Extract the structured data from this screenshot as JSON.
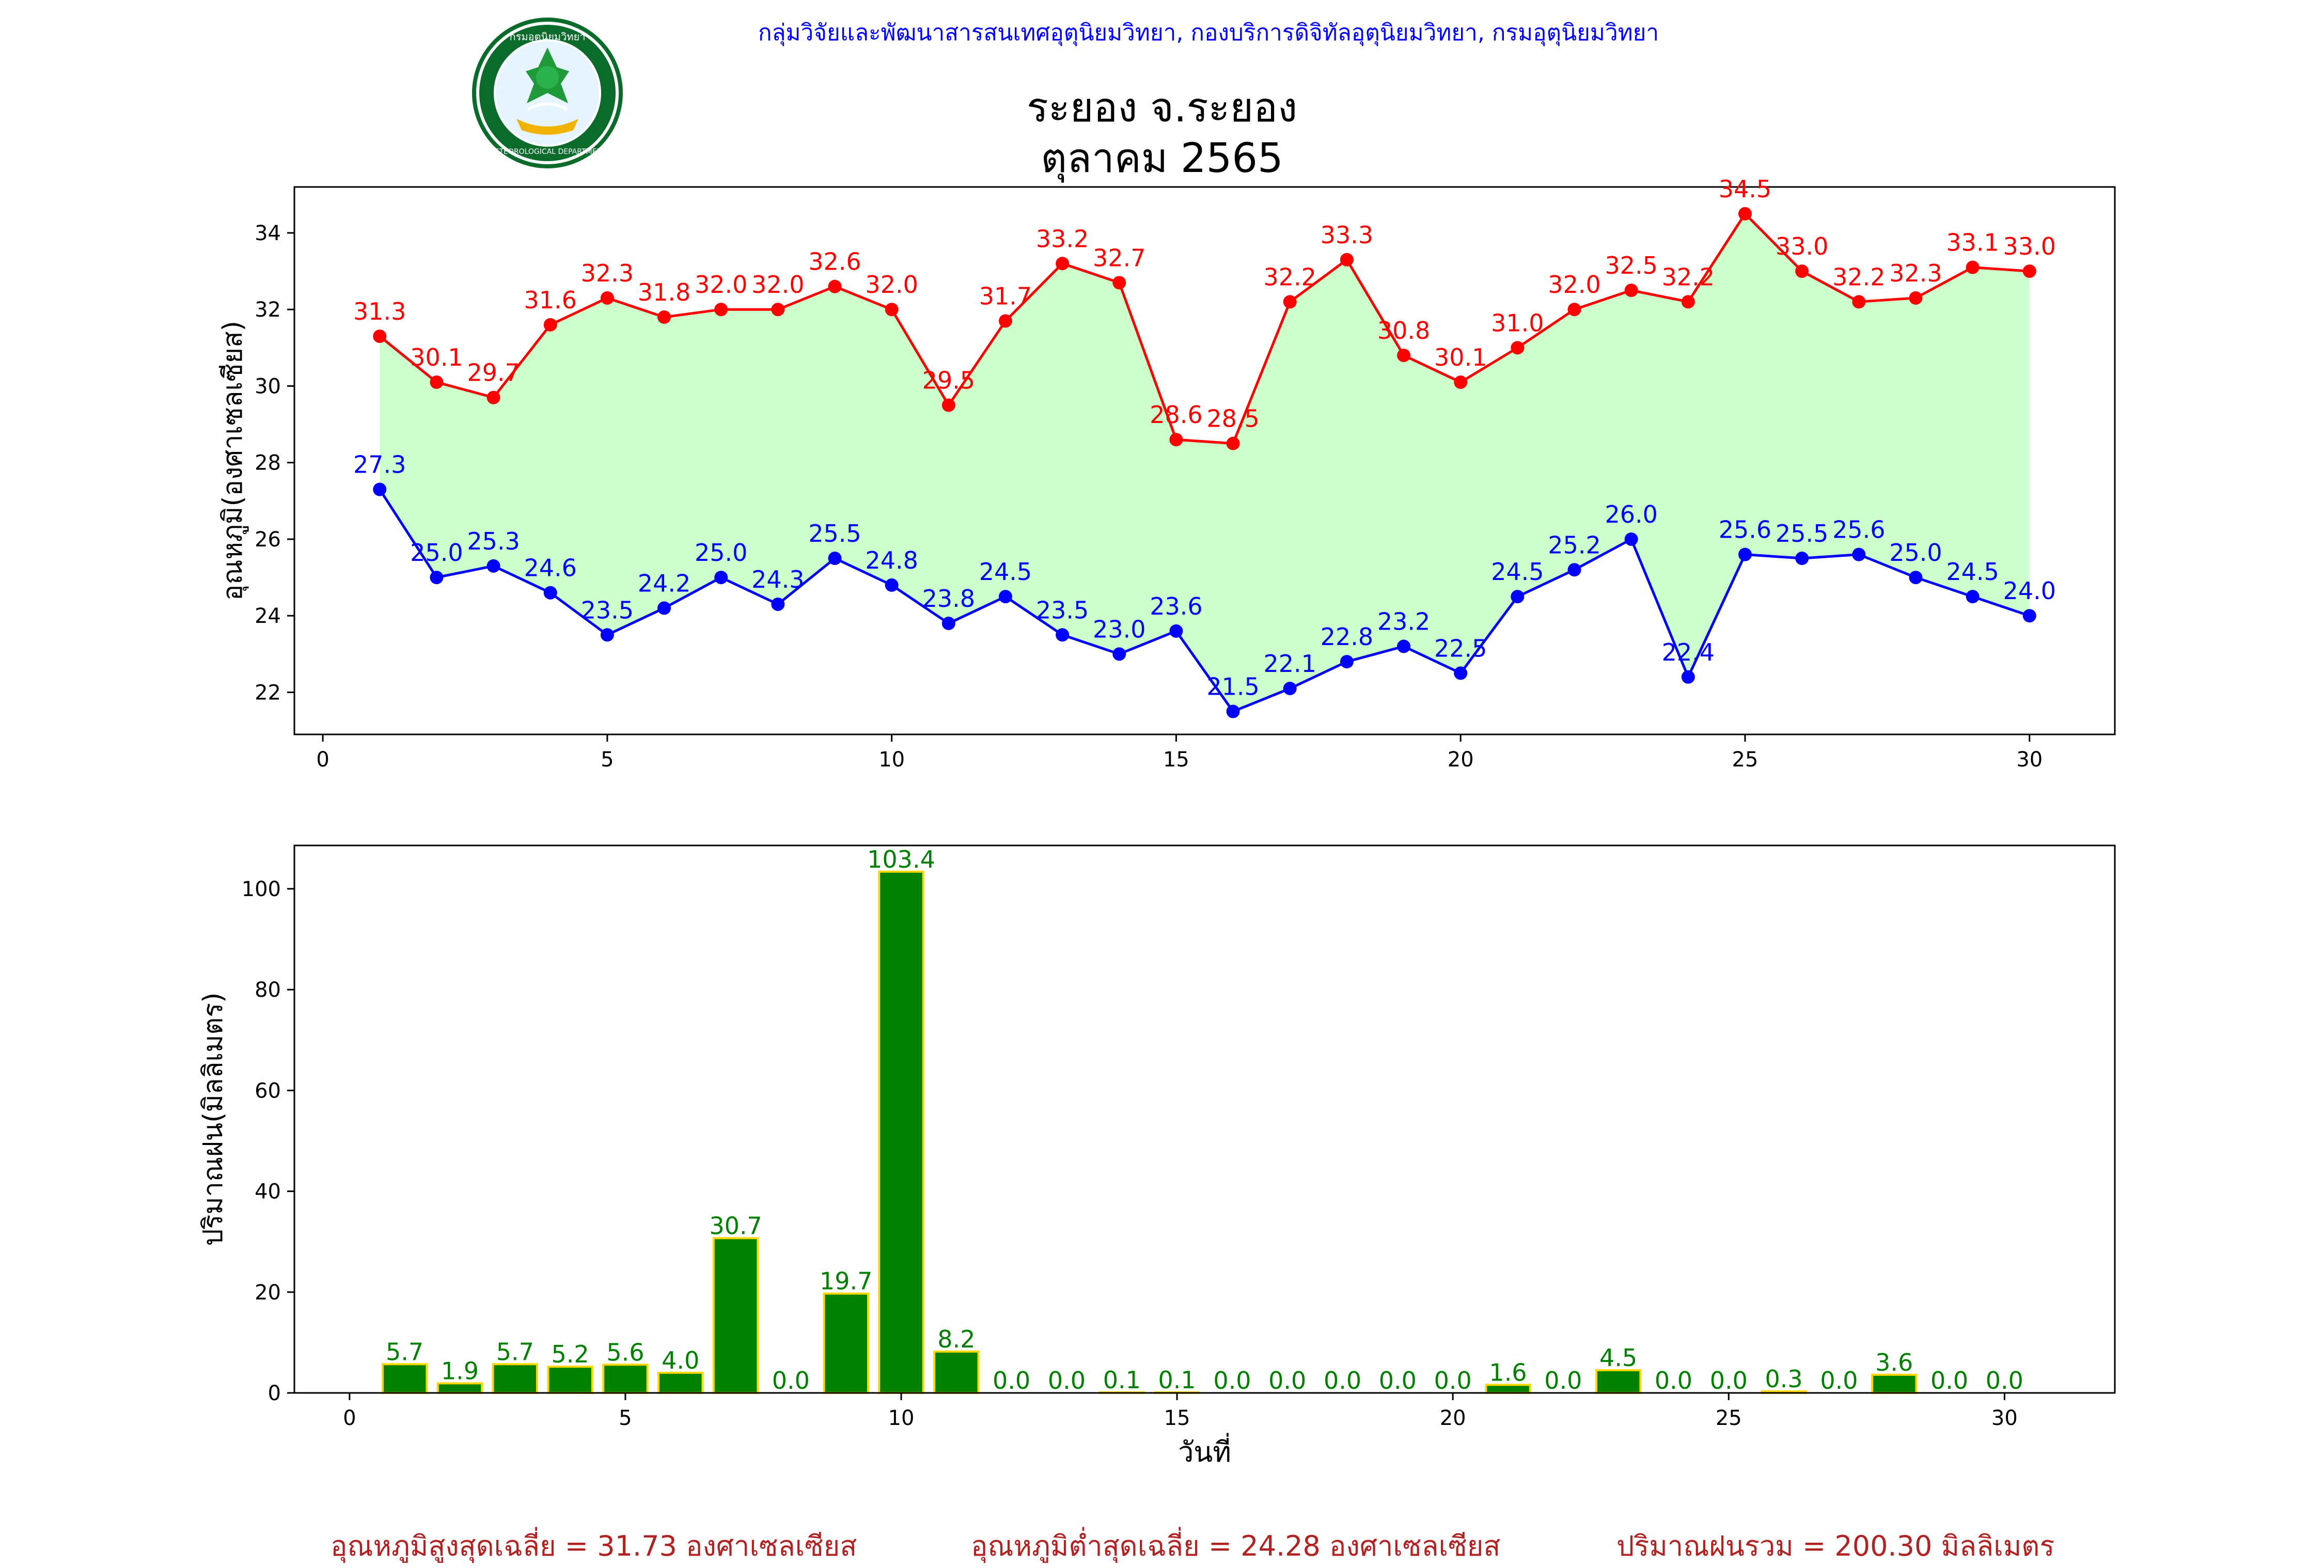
{
  "header": {
    "credit": "กลุ่มวิจัยและพัฒนาสารสนเทศอุตุนิยมวิทยา, กองบริการดิจิทัลอุตุนิยมวิทยา, กรมอุตุนิยมวิทยา",
    "title_line1": "ระยอง จ.ระยอง",
    "title_line2": "ตุลาคม 2565",
    "logo_text_top": "กรมอุตุนิยมวิทยา",
    "logo_text_bottom": "METEOROLOGICAL DEPARTMENT"
  },
  "footer": {
    "max_avg": "อุณหภูมิสูงสุดเฉลี่ย = 31.73 องศาเซลเซียส",
    "min_avg": "อุณหภูมิต่ำสุดเฉลี่ย = 24.28 องศาเซลเซียส",
    "rain_total": "ปริมาณฝนรวม = 200.30 มิลลิเมตร"
  },
  "colors": {
    "max_line": "#ff0000",
    "min_line": "#0000ff",
    "fill": "#ccffcc",
    "bar": "#008000",
    "bar_edge": "#ffd700",
    "bar_label": "#008000",
    "footer": "#b22222",
    "credit": "#0000ff"
  },
  "chart_data": [
    {
      "type": "line",
      "ylabel": "อุณหภูมิ(องศาเซลเซียส)",
      "xlim": [
        -0.5,
        31.5
      ],
      "ylim": [
        20.9,
        35.2
      ],
      "xticks": [
        0,
        5,
        10,
        15,
        20,
        25,
        30
      ],
      "yticks": [
        22,
        24,
        26,
        28,
        30,
        32,
        34
      ],
      "x": [
        1,
        2,
        3,
        4,
        5,
        6,
        7,
        8,
        9,
        10,
        11,
        12,
        13,
        14,
        15,
        16,
        17,
        18,
        19,
        20,
        21,
        22,
        23,
        24,
        25,
        26,
        27,
        28,
        29,
        30
      ],
      "series": [
        {
          "key": "max",
          "values": [
            31.3,
            30.1,
            29.7,
            31.6,
            32.3,
            31.8,
            32.0,
            32.0,
            32.6,
            32.0,
            29.5,
            31.7,
            33.2,
            32.7,
            28.6,
            28.5,
            32.2,
            33.3,
            30.8,
            30.1,
            31.0,
            32.0,
            32.5,
            32.2,
            34.5,
            33.0,
            32.2,
            32.3,
            33.1,
            33.0
          ]
        },
        {
          "key": "min",
          "values": [
            27.3,
            25.0,
            25.3,
            24.6,
            23.5,
            24.2,
            25.0,
            24.3,
            25.5,
            24.8,
            23.8,
            24.5,
            23.5,
            23.0,
            23.6,
            21.5,
            22.1,
            22.8,
            23.2,
            22.5,
            24.5,
            25.2,
            26.0,
            22.4,
            25.6,
            25.5,
            25.6,
            25.0,
            24.5,
            24.0
          ]
        }
      ]
    },
    {
      "type": "bar",
      "xlabel": "วันที่",
      "ylabel": "ปริมาณฝน(มิลลิเมตร)",
      "xlim": [
        -1,
        32
      ],
      "ylim": [
        0,
        108.6
      ],
      "xticks": [
        0,
        5,
        10,
        15,
        20,
        25,
        30
      ],
      "yticks": [
        0,
        20,
        40,
        60,
        80,
        100
      ],
      "x": [
        1,
        2,
        3,
        4,
        5,
        6,
        7,
        8,
        9,
        10,
        11,
        12,
        13,
        14,
        15,
        16,
        17,
        18,
        19,
        20,
        21,
        22,
        23,
        24,
        25,
        26,
        27,
        28,
        29,
        30
      ],
      "values": [
        5.7,
        1.9,
        5.7,
        5.2,
        5.6,
        4.0,
        30.7,
        0.0,
        19.7,
        103.4,
        8.2,
        0.0,
        0.0,
        0.1,
        0.1,
        0.0,
        0.0,
        0.0,
        0.0,
        0.0,
        1.6,
        0.0,
        4.5,
        0.0,
        0.0,
        0.3,
        0.0,
        3.6,
        0.0,
        0.0
      ]
    }
  ]
}
